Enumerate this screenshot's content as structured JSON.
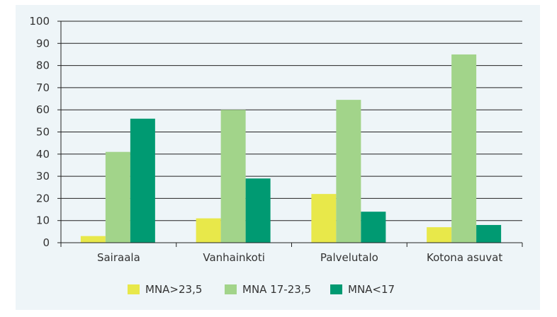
{
  "chart_data": {
    "type": "bar",
    "title": "",
    "xlabel": "",
    "ylabel": "",
    "ylim": [
      0,
      100
    ],
    "yticks": [
      0,
      10,
      20,
      30,
      40,
      50,
      60,
      70,
      80,
      90,
      100
    ],
    "grid": true,
    "legend_position": "bottom",
    "categories": [
      "Sairaala",
      "Vanhainkoti",
      "Palvelutalo",
      "Kotona asuvat"
    ],
    "series": [
      {
        "name": "MNA>23,5",
        "color": "#e8e84a",
        "values": [
          3,
          11,
          22,
          7
        ]
      },
      {
        "name": "MNA 17-23,5",
        "color": "#a2d48a",
        "values": [
          41,
          60,
          64.5,
          85
        ]
      },
      {
        "name": "MNA<17",
        "color": "#009a72",
        "values": [
          56,
          29,
          14,
          8
        ]
      }
    ]
  }
}
